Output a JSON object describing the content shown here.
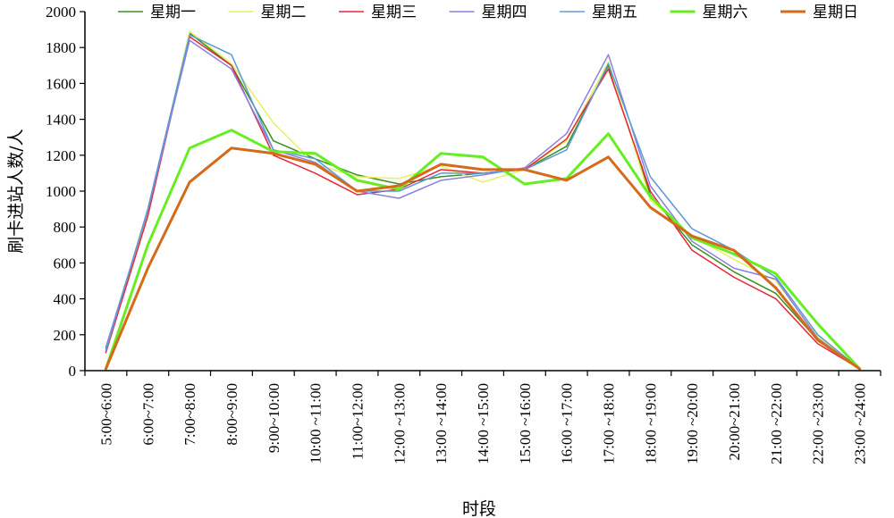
{
  "chart_data": {
    "type": "line",
    "xlabel": "时段",
    "ylabel": "刷卡进站人数/人",
    "ylim": [
      0,
      2000
    ],
    "yticks": [
      0,
      200,
      400,
      600,
      800,
      1000,
      1200,
      1400,
      1600,
      1800,
      2000
    ],
    "grid": false,
    "legend_position": "top",
    "categories": [
      "5:00~6:00",
      "6:00~7:00",
      "7:00~8:00",
      "8:00~9:00",
      "9:00~10:00",
      "10:00 ~11:00",
      "11:00~12:00",
      "12:00 ~13:00",
      "13:00 ~14:00",
      "14:00 ~15:00",
      "15:00 ~16:00",
      "16:00 ~17:00",
      "17:00 ~18:00",
      "18:00 ~19:00",
      "19:00 ~20:00",
      "20:00~21:00",
      "21:00 ~22:00",
      "22:00 ~23:00",
      "23:00 ~24:00"
    ],
    "series": [
      {
        "name": "星期一",
        "color": "#3a8f1e",
        "width": 1.5,
        "values": [
          120,
          880,
          1880,
          1700,
          1280,
          1180,
          1090,
          1040,
          1080,
          1100,
          1120,
          1250,
          1700,
          980,
          700,
          550,
          430,
          170,
          10
        ]
      },
      {
        "name": "星期二",
        "color": "#e8f060",
        "width": 1.5,
        "values": [
          110,
          870,
          1890,
          1710,
          1380,
          1150,
          1080,
          1070,
          1140,
          1050,
          1120,
          1280,
          1720,
          950,
          750,
          620,
          500,
          190,
          10
        ]
      },
      {
        "name": "星期三",
        "color": "#e8263a",
        "width": 1.5,
        "values": [
          100,
          860,
          1860,
          1700,
          1200,
          1100,
          980,
          1010,
          1120,
          1100,
          1120,
          1290,
          1680,
          1000,
          670,
          520,
          400,
          150,
          10
        ]
      },
      {
        "name": "星期四",
        "color": "#8a80e0",
        "width": 1.5,
        "values": [
          130,
          890,
          1840,
          1680,
          1230,
          1160,
          1000,
          960,
          1060,
          1090,
          1130,
          1320,
          1760,
          1030,
          720,
          570,
          510,
          180,
          10
        ]
      },
      {
        "name": "星期五",
        "color": "#5b9bd5",
        "width": 1.5,
        "values": [
          110,
          900,
          1870,
          1760,
          1230,
          1180,
          1000,
          1000,
          1100,
          1100,
          1120,
          1230,
          1710,
          1080,
          790,
          670,
          520,
          200,
          10
        ]
      },
      {
        "name": "星期六",
        "color": "#66ee22",
        "width": 3,
        "values": [
          10,
          700,
          1240,
          1340,
          1220,
          1210,
          1060,
          1010,
          1210,
          1190,
          1040,
          1070,
          1320,
          970,
          740,
          650,
          540,
          260,
          10
        ]
      },
      {
        "name": "星期日",
        "color": "#d46a1a",
        "width": 3,
        "values": [
          10,
          570,
          1050,
          1240,
          1210,
          1150,
          1000,
          1030,
          1150,
          1120,
          1120,
          1060,
          1190,
          910,
          750,
          670,
          460,
          170,
          10
        ]
      }
    ]
  }
}
